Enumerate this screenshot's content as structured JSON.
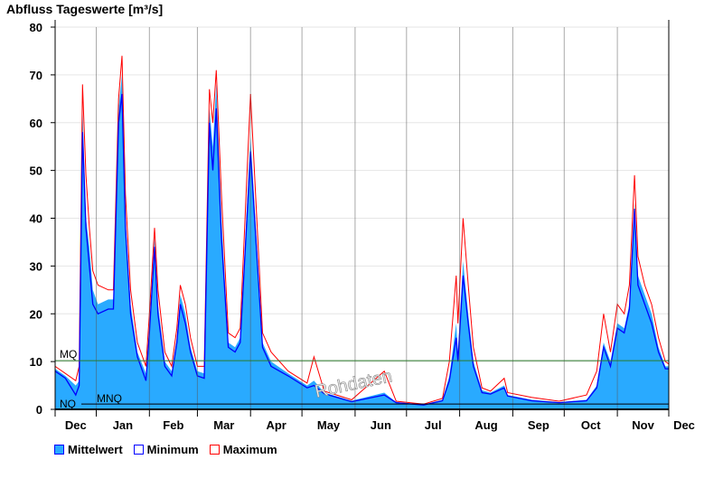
{
  "chart_data": {
    "type": "area",
    "title": "Abfluss Tageswerte [m³/s]",
    "ylim": [
      0,
      80
    ],
    "yticks": [
      0,
      10,
      20,
      30,
      40,
      50,
      60,
      70,
      80
    ],
    "x_start": "12-08",
    "x_end": "12-01",
    "month_labels": [
      "Dec",
      "Jan",
      "Feb",
      "Mar",
      "Apr",
      "May",
      "Jun",
      "Jul",
      "Aug",
      "Sep",
      "Oct",
      "Nov",
      "Dec"
    ],
    "grid": true,
    "legend_placement": "bottom-left",
    "x": [
      "12-08",
      "12-14",
      "12-20",
      "12-22",
      "12-24",
      "12-26",
      "12-28",
      "12-30",
      "01-02",
      "01-08",
      "01-11",
      "01-14",
      "01-16",
      "01-18",
      "01-21",
      "01-25",
      "01-30",
      "02-01",
      "02-04",
      "02-06",
      "02-10",
      "02-14",
      "02-17",
      "02-19",
      "02-22",
      "02-25",
      "03-01",
      "03-05",
      "03-08",
      "03-10",
      "03-12",
      "03-15",
      "03-19",
      "03-23",
      "03-26",
      "04-01",
      "04-08",
      "04-13",
      "04-23",
      "05-04",
      "05-08",
      "05-14",
      "05-30",
      "06-18",
      "06-25",
      "07-11",
      "07-22",
      "07-26",
      "07-30",
      "07-31",
      "08-03",
      "08-06",
      "08-09",
      "08-14",
      "08-19",
      "08-27",
      "08-29",
      "09-12",
      "09-28",
      "10-14",
      "10-20",
      "10-24",
      "10-28",
      "11-01",
      "11-05",
      "11-08",
      "11-11",
      "11-13",
      "11-17",
      "11-21",
      "11-25",
      "11-29",
      "12-01"
    ],
    "series": [
      {
        "name": "Mittelwert",
        "color": "#29aaff",
        "values": [
          8.5,
          7,
          5,
          6,
          63,
          40,
          34,
          25,
          22,
          23,
          23,
          63,
          70,
          40,
          22,
          12,
          7.5,
          17,
          36,
          22,
          10,
          8,
          15,
          24,
          20,
          13,
          8,
          7.5,
          63,
          55,
          68,
          40,
          14,
          13,
          15,
          57,
          14,
          10,
          7.5,
          5,
          6,
          3.5,
          1.8,
          3.5,
          1.5,
          1,
          2,
          7,
          18,
          12,
          31,
          20,
          10,
          4,
          3.5,
          5,
          3,
          2,
          1.5,
          2,
          5,
          14,
          10,
          18,
          17,
          22,
          43,
          28,
          24,
          20,
          13,
          9,
          9
        ]
      },
      {
        "name": "Minimum",
        "color": "#0000ff",
        "values": [
          8,
          6.5,
          3,
          5,
          58,
          38,
          30,
          22,
          20,
          21,
          21,
          60,
          66,
          38,
          20,
          11,
          6,
          16,
          34,
          20,
          9,
          7,
          14,
          22,
          18,
          12,
          7,
          6.5,
          60,
          50,
          63,
          36,
          13,
          12,
          14,
          54,
          13,
          9,
          7,
          4.5,
          5,
          3.3,
          1.6,
          3,
          1.4,
          0.9,
          1.8,
          6,
          15,
          10,
          28,
          18,
          9,
          3.5,
          3.2,
          4.5,
          2.8,
          1.8,
          1.4,
          1.8,
          4.5,
          13,
          9,
          17,
          16,
          21,
          42,
          26,
          22,
          18,
          12,
          8.5,
          8.5
        ]
      },
      {
        "name": "Maximum",
        "color": "#ff0000",
        "values": [
          9,
          7.5,
          6,
          9,
          68,
          49,
          38,
          29,
          26,
          25,
          25,
          65,
          74,
          45,
          25,
          14,
          9,
          20,
          38,
          25,
          12,
          9,
          17,
          26,
          22,
          15,
          9,
          9,
          67,
          60,
          71,
          45,
          16,
          15,
          17,
          66,
          16,
          12,
          8,
          5.5,
          11,
          3.8,
          2,
          8,
          1.7,
          1.1,
          2.3,
          10,
          28,
          18,
          40,
          26,
          13,
          4.5,
          3.8,
          6.5,
          3.5,
          2.5,
          1.7,
          3,
          8,
          20,
          12,
          22,
          20,
          26,
          49,
          32,
          26,
          22,
          15,
          10,
          9.5
        ]
      }
    ],
    "reference_lines": [
      {
        "label": "MQ",
        "value": 10.2,
        "color": "#2a7a2a"
      },
      {
        "label": "MNQ",
        "value": 1.1,
        "color": "#000000"
      },
      {
        "label": "NQ",
        "value": 0.3,
        "color": "#000000"
      }
    ],
    "watermark": "Rohdaten"
  },
  "legend": {
    "mean": "Mittelwert",
    "min": "Minimum",
    "max": "Maximum"
  }
}
